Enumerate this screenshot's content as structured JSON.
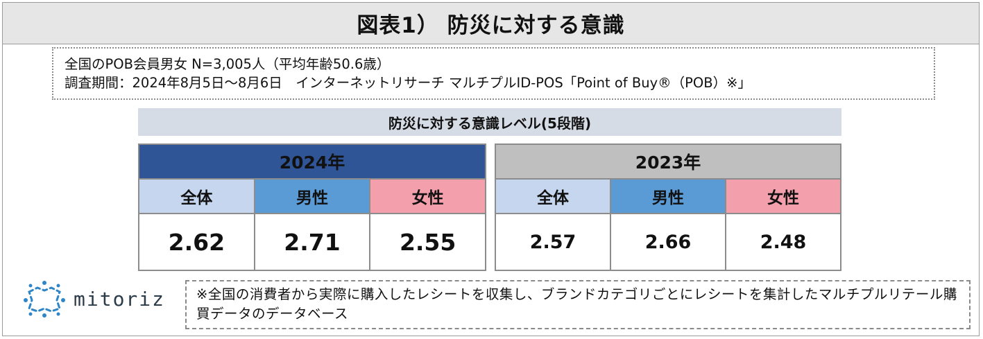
{
  "title": "図表1） 防災に対する意識",
  "survey": {
    "line1": "全国のPOB会員男女 N=3,005人（平均年齢50.6歳）",
    "line2": "調査期間：2024年8月5日～8月6日　インターネットリサーチ マルチプルID-POS「Point of Buy®（POB）※」"
  },
  "subtitle": "防災に対する意識レベル(5段階)",
  "chart_data": {
    "type": "table",
    "title": "防災に対する意識レベル(5段階)",
    "groups": [
      {
        "year": "2024年",
        "columns": [
          "全体",
          "男性",
          "女性"
        ],
        "values": [
          "2.62",
          "2.71",
          "2.55"
        ]
      },
      {
        "year": "2023年",
        "columns": [
          "全体",
          "男性",
          "女性"
        ],
        "values": [
          "2.57",
          "2.66",
          "2.48"
        ]
      }
    ]
  },
  "logo": {
    "text": "mitoriz",
    "icon": "mitoriz-logo-icon"
  },
  "note": "※全国の消費者から実際に購入したレシートを収集し、ブランドカテゴリごとにレシートを集計したマルチプルリテール購買データのデータベース",
  "colors": {
    "year_2024": "#2f5597",
    "year_2023": "#bfbfbf",
    "all": "#c6d6ee",
    "male": "#5b9bd5",
    "female": "#f4a0ac",
    "subtitle_bg": "#d6dce5",
    "title_bg": "#e6e6e6"
  }
}
